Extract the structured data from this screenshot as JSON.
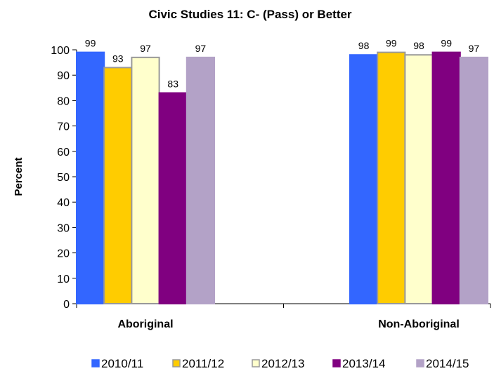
{
  "chart_data": {
    "type": "bar",
    "title": "Civic Studies 11: C- (Pass) or Better",
    "ylabel": "Percent",
    "xlabel": "",
    "ylim": [
      0,
      100
    ],
    "yticks": [
      0,
      10,
      20,
      30,
      40,
      50,
      60,
      70,
      80,
      90,
      100
    ],
    "grid": false,
    "legend_position": "bottom",
    "categories": [
      "Aboriginal",
      "Non-Aboriginal"
    ],
    "series": [
      {
        "name": "2010/11",
        "color": "#3366ff",
        "border": "#3366ff",
        "values": [
          99,
          98
        ]
      },
      {
        "name": "2011/12",
        "color": "#ffcc00",
        "border": "#999999",
        "values": [
          93,
          99
        ]
      },
      {
        "name": "2012/13",
        "color": "#ffffcc",
        "border": "#999999",
        "values": [
          97,
          98
        ]
      },
      {
        "name": "2013/14",
        "color": "#800080",
        "border": "#800080",
        "values": [
          83,
          99
        ]
      },
      {
        "name": "2014/15",
        "color": "#b3a2c7",
        "border": "#b3a2c7",
        "values": [
          97,
          97
        ]
      }
    ]
  }
}
